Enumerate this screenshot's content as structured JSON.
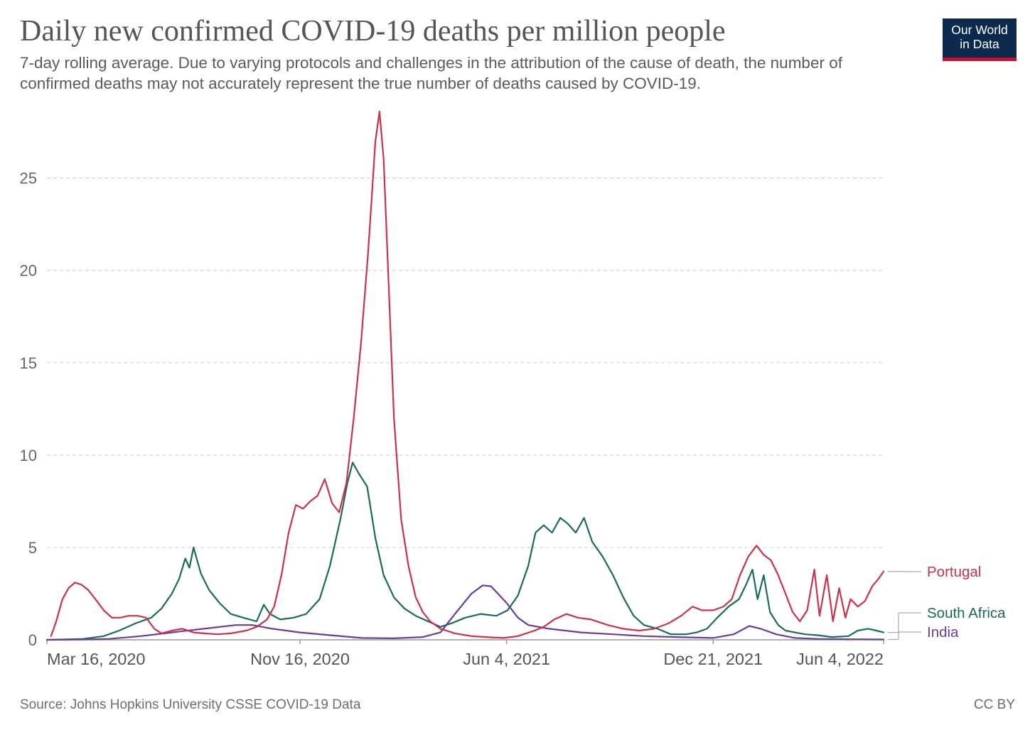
{
  "header": {
    "title": "Daily new confirmed COVID-19 deaths per million people",
    "subtitle": "7-day rolling average. Due to varying protocols and challenges in the attribution of the cause of death, the number of confirmed deaths may not accurately represent the true number of deaths caused by COVID-19."
  },
  "logo": {
    "line1": "Our World",
    "line2": "in Data",
    "bg_color": "#0c2a4e",
    "accent_color": "#c8102e"
  },
  "footer": {
    "source": "Source: Johns Hopkins University CSSE COVID-19 Data",
    "license": "CC BY"
  },
  "chart_data": {
    "type": "line",
    "title": "Daily new confirmed COVID-19 deaths per million people",
    "xlabel": "",
    "ylabel": "",
    "x_type": "date",
    "xlim": [
      "2020-03-16",
      "2022-06-04"
    ],
    "ylim": [
      0,
      28.6
    ],
    "y_ticks": [
      0,
      5,
      10,
      15,
      20,
      25
    ],
    "x_tick_labels": [
      "Mar 16, 2020",
      "Nov 16, 2020",
      "Jun 4, 2021",
      "Dec 21, 2021",
      "Jun 4, 2022"
    ],
    "x_tick_dates": [
      "2020-03-16",
      "2020-11-16",
      "2021-06-04",
      "2021-12-21",
      "2022-06-04"
    ],
    "grid": "horizontal dashed",
    "legend": "labels at right end of lines",
    "series": [
      {
        "name": "Portugal",
        "color": "#c8334b",
        "points": [
          [
            "2020-03-20",
            0.2
          ],
          [
            "2020-03-25",
            1.0
          ],
          [
            "2020-03-31",
            2.2
          ],
          [
            "2020-04-06",
            2.8
          ],
          [
            "2020-04-12",
            3.1
          ],
          [
            "2020-04-18",
            3.0
          ],
          [
            "2020-04-25",
            2.7
          ],
          [
            "2020-05-02",
            2.2
          ],
          [
            "2020-05-10",
            1.6
          ],
          [
            "2020-05-18",
            1.2
          ],
          [
            "2020-05-26",
            1.2
          ],
          [
            "2020-06-03",
            1.3
          ],
          [
            "2020-06-12",
            1.3
          ],
          [
            "2020-06-20",
            1.2
          ],
          [
            "2020-06-28",
            0.6
          ],
          [
            "2020-07-05",
            0.35
          ],
          [
            "2020-07-15",
            0.5
          ],
          [
            "2020-07-25",
            0.6
          ],
          [
            "2020-08-05",
            0.4
          ],
          [
            "2020-08-15",
            0.35
          ],
          [
            "2020-08-28",
            0.3
          ],
          [
            "2020-09-10",
            0.35
          ],
          [
            "2020-09-25",
            0.5
          ],
          [
            "2020-10-05",
            0.7
          ],
          [
            "2020-10-15",
            1.1
          ],
          [
            "2020-10-22",
            1.8
          ],
          [
            "2020-10-29",
            3.5
          ],
          [
            "2020-11-05",
            5.8
          ],
          [
            "2020-11-12",
            7.3
          ],
          [
            "2020-11-19",
            7.1
          ],
          [
            "2020-11-26",
            7.5
          ],
          [
            "2020-12-03",
            7.8
          ],
          [
            "2020-12-10",
            8.7
          ],
          [
            "2020-12-17",
            7.4
          ],
          [
            "2020-12-24",
            6.9
          ],
          [
            "2020-12-31",
            8.5
          ],
          [
            "2021-01-07",
            12.0
          ],
          [
            "2021-01-14",
            16.0
          ],
          [
            "2021-01-21",
            21.0
          ],
          [
            "2021-01-28",
            27.0
          ],
          [
            "2021-02-01",
            28.6
          ],
          [
            "2021-02-05",
            26.0
          ],
          [
            "2021-02-10",
            19.0
          ],
          [
            "2021-02-15",
            12.0
          ],
          [
            "2021-02-22",
            6.5
          ],
          [
            "2021-03-01",
            4.0
          ],
          [
            "2021-03-08",
            2.3
          ],
          [
            "2021-03-15",
            1.5
          ],
          [
            "2021-03-22",
            1.0
          ],
          [
            "2021-04-01",
            0.6
          ],
          [
            "2021-04-15",
            0.35
          ],
          [
            "2021-05-01",
            0.2
          ],
          [
            "2021-05-15",
            0.15
          ],
          [
            "2021-06-01",
            0.1
          ],
          [
            "2021-06-15",
            0.2
          ],
          [
            "2021-07-01",
            0.5
          ],
          [
            "2021-07-10",
            0.7
          ],
          [
            "2021-07-20",
            1.1
          ],
          [
            "2021-08-01",
            1.4
          ],
          [
            "2021-08-12",
            1.2
          ],
          [
            "2021-08-25",
            1.1
          ],
          [
            "2021-09-10",
            0.8
          ],
          [
            "2021-09-25",
            0.6
          ],
          [
            "2021-10-10",
            0.5
          ],
          [
            "2021-10-25",
            0.6
          ],
          [
            "2021-11-08",
            0.9
          ],
          [
            "2021-11-20",
            1.3
          ],
          [
            "2021-12-01",
            1.8
          ],
          [
            "2021-12-10",
            1.6
          ],
          [
            "2021-12-21",
            1.6
          ],
          [
            "2021-12-31",
            1.8
          ],
          [
            "2022-01-08",
            2.2
          ],
          [
            "2022-01-16",
            3.5
          ],
          [
            "2022-01-24",
            4.5
          ],
          [
            "2022-02-01",
            5.1
          ],
          [
            "2022-02-08",
            4.6
          ],
          [
            "2022-02-15",
            4.3
          ],
          [
            "2022-02-22",
            3.5
          ],
          [
            "2022-03-01",
            2.5
          ],
          [
            "2022-03-08",
            1.5
          ],
          [
            "2022-03-15",
            1.0
          ],
          [
            "2022-03-22",
            1.6
          ],
          [
            "2022-03-29",
            3.8
          ],
          [
            "2022-04-03",
            1.3
          ],
          [
            "2022-04-10",
            3.5
          ],
          [
            "2022-04-16",
            1.0
          ],
          [
            "2022-04-22",
            2.8
          ],
          [
            "2022-04-28",
            1.2
          ],
          [
            "2022-05-03",
            2.2
          ],
          [
            "2022-05-10",
            1.8
          ],
          [
            "2022-05-17",
            2.1
          ],
          [
            "2022-05-24",
            2.9
          ],
          [
            "2022-05-30",
            3.3
          ],
          [
            "2022-06-04",
            3.7
          ]
        ]
      },
      {
        "name": "South Africa",
        "color": "#1b6a5d",
        "points": [
          [
            "2020-03-16",
            0.0
          ],
          [
            "2020-04-01",
            0.02
          ],
          [
            "2020-04-20",
            0.05
          ],
          [
            "2020-05-10",
            0.2
          ],
          [
            "2020-05-25",
            0.5
          ],
          [
            "2020-06-10",
            0.9
          ],
          [
            "2020-06-25",
            1.2
          ],
          [
            "2020-07-05",
            1.7
          ],
          [
            "2020-07-15",
            2.5
          ],
          [
            "2020-07-22",
            3.3
          ],
          [
            "2020-07-28",
            4.4
          ],
          [
            "2020-08-01",
            3.9
          ],
          [
            "2020-08-05",
            5.0
          ],
          [
            "2020-08-12",
            3.6
          ],
          [
            "2020-08-20",
            2.7
          ],
          [
            "2020-08-30",
            2.0
          ],
          [
            "2020-09-10",
            1.4
          ],
          [
            "2020-09-22",
            1.2
          ],
          [
            "2020-10-05",
            1.0
          ],
          [
            "2020-10-12",
            1.9
          ],
          [
            "2020-10-18",
            1.4
          ],
          [
            "2020-10-28",
            1.1
          ],
          [
            "2020-11-10",
            1.2
          ],
          [
            "2020-11-22",
            1.4
          ],
          [
            "2020-12-05",
            2.2
          ],
          [
            "2020-12-15",
            4.0
          ],
          [
            "2020-12-25",
            6.5
          ],
          [
            "2021-01-01",
            8.5
          ],
          [
            "2021-01-06",
            9.6
          ],
          [
            "2021-01-12",
            9.0
          ],
          [
            "2021-01-20",
            8.3
          ],
          [
            "2021-01-28",
            5.5
          ],
          [
            "2021-02-05",
            3.5
          ],
          [
            "2021-02-15",
            2.3
          ],
          [
            "2021-02-25",
            1.7
          ],
          [
            "2021-03-08",
            1.3
          ],
          [
            "2021-03-20",
            1.0
          ],
          [
            "2021-04-01",
            0.7
          ],
          [
            "2021-04-12",
            0.9
          ],
          [
            "2021-04-25",
            1.2
          ],
          [
            "2021-05-10",
            1.4
          ],
          [
            "2021-05-25",
            1.3
          ],
          [
            "2021-06-05",
            1.6
          ],
          [
            "2021-06-15",
            2.4
          ],
          [
            "2021-06-25",
            4.0
          ],
          [
            "2021-07-02",
            5.8
          ],
          [
            "2021-07-10",
            6.2
          ],
          [
            "2021-07-18",
            5.8
          ],
          [
            "2021-07-26",
            6.6
          ],
          [
            "2021-08-02",
            6.3
          ],
          [
            "2021-08-10",
            5.8
          ],
          [
            "2021-08-18",
            6.6
          ],
          [
            "2021-08-26",
            5.3
          ],
          [
            "2021-09-05",
            4.5
          ],
          [
            "2021-09-15",
            3.5
          ],
          [
            "2021-09-25",
            2.3
          ],
          [
            "2021-10-05",
            1.3
          ],
          [
            "2021-10-15",
            0.8
          ],
          [
            "2021-10-28",
            0.6
          ],
          [
            "2021-11-10",
            0.3
          ],
          [
            "2021-11-25",
            0.3
          ],
          [
            "2021-12-05",
            0.4
          ],
          [
            "2021-12-15",
            0.6
          ],
          [
            "2021-12-25",
            1.2
          ],
          [
            "2022-01-05",
            1.8
          ],
          [
            "2022-01-15",
            2.2
          ],
          [
            "2022-01-22",
            3.0
          ],
          [
            "2022-01-28",
            3.8
          ],
          [
            "2022-02-02",
            2.2
          ],
          [
            "2022-02-08",
            3.5
          ],
          [
            "2022-02-14",
            1.5
          ],
          [
            "2022-02-22",
            0.8
          ],
          [
            "2022-03-01",
            0.5
          ],
          [
            "2022-03-10",
            0.4
          ],
          [
            "2022-03-20",
            0.3
          ],
          [
            "2022-04-01",
            0.25
          ],
          [
            "2022-04-15",
            0.15
          ],
          [
            "2022-05-01",
            0.2
          ],
          [
            "2022-05-10",
            0.5
          ],
          [
            "2022-05-20",
            0.6
          ],
          [
            "2022-05-28",
            0.5
          ],
          [
            "2022-06-04",
            0.4
          ]
        ]
      },
      {
        "name": "India",
        "color": "#6a3d9a",
        "points": [
          [
            "2020-03-16",
            0.0
          ],
          [
            "2020-04-15",
            0.01
          ],
          [
            "2020-05-15",
            0.05
          ],
          [
            "2020-06-15",
            0.2
          ],
          [
            "2020-07-15",
            0.4
          ],
          [
            "2020-08-15",
            0.6
          ],
          [
            "2020-09-15",
            0.8
          ],
          [
            "2020-10-01",
            0.8
          ],
          [
            "2020-10-20",
            0.6
          ],
          [
            "2020-11-16",
            0.4
          ],
          [
            "2020-12-15",
            0.25
          ],
          [
            "2021-01-15",
            0.1
          ],
          [
            "2021-02-15",
            0.08
          ],
          [
            "2021-03-15",
            0.15
          ],
          [
            "2021-04-01",
            0.4
          ],
          [
            "2021-04-15",
            1.4
          ],
          [
            "2021-05-01",
            2.5
          ],
          [
            "2021-05-12",
            2.95
          ],
          [
            "2021-05-20",
            2.9
          ],
          [
            "2021-06-04",
            2.0
          ],
          [
            "2021-06-15",
            1.2
          ],
          [
            "2021-06-25",
            0.8
          ],
          [
            "2021-07-15",
            0.6
          ],
          [
            "2021-08-15",
            0.4
          ],
          [
            "2021-09-15",
            0.3
          ],
          [
            "2021-10-15",
            0.2
          ],
          [
            "2021-11-15",
            0.15
          ],
          [
            "2021-12-21",
            0.1
          ],
          [
            "2022-01-10",
            0.3
          ],
          [
            "2022-01-25",
            0.75
          ],
          [
            "2022-02-05",
            0.6
          ],
          [
            "2022-02-20",
            0.3
          ],
          [
            "2022-03-10",
            0.1
          ],
          [
            "2022-04-01",
            0.05
          ],
          [
            "2022-05-01",
            0.03
          ],
          [
            "2022-06-04",
            0.02
          ]
        ]
      }
    ]
  }
}
